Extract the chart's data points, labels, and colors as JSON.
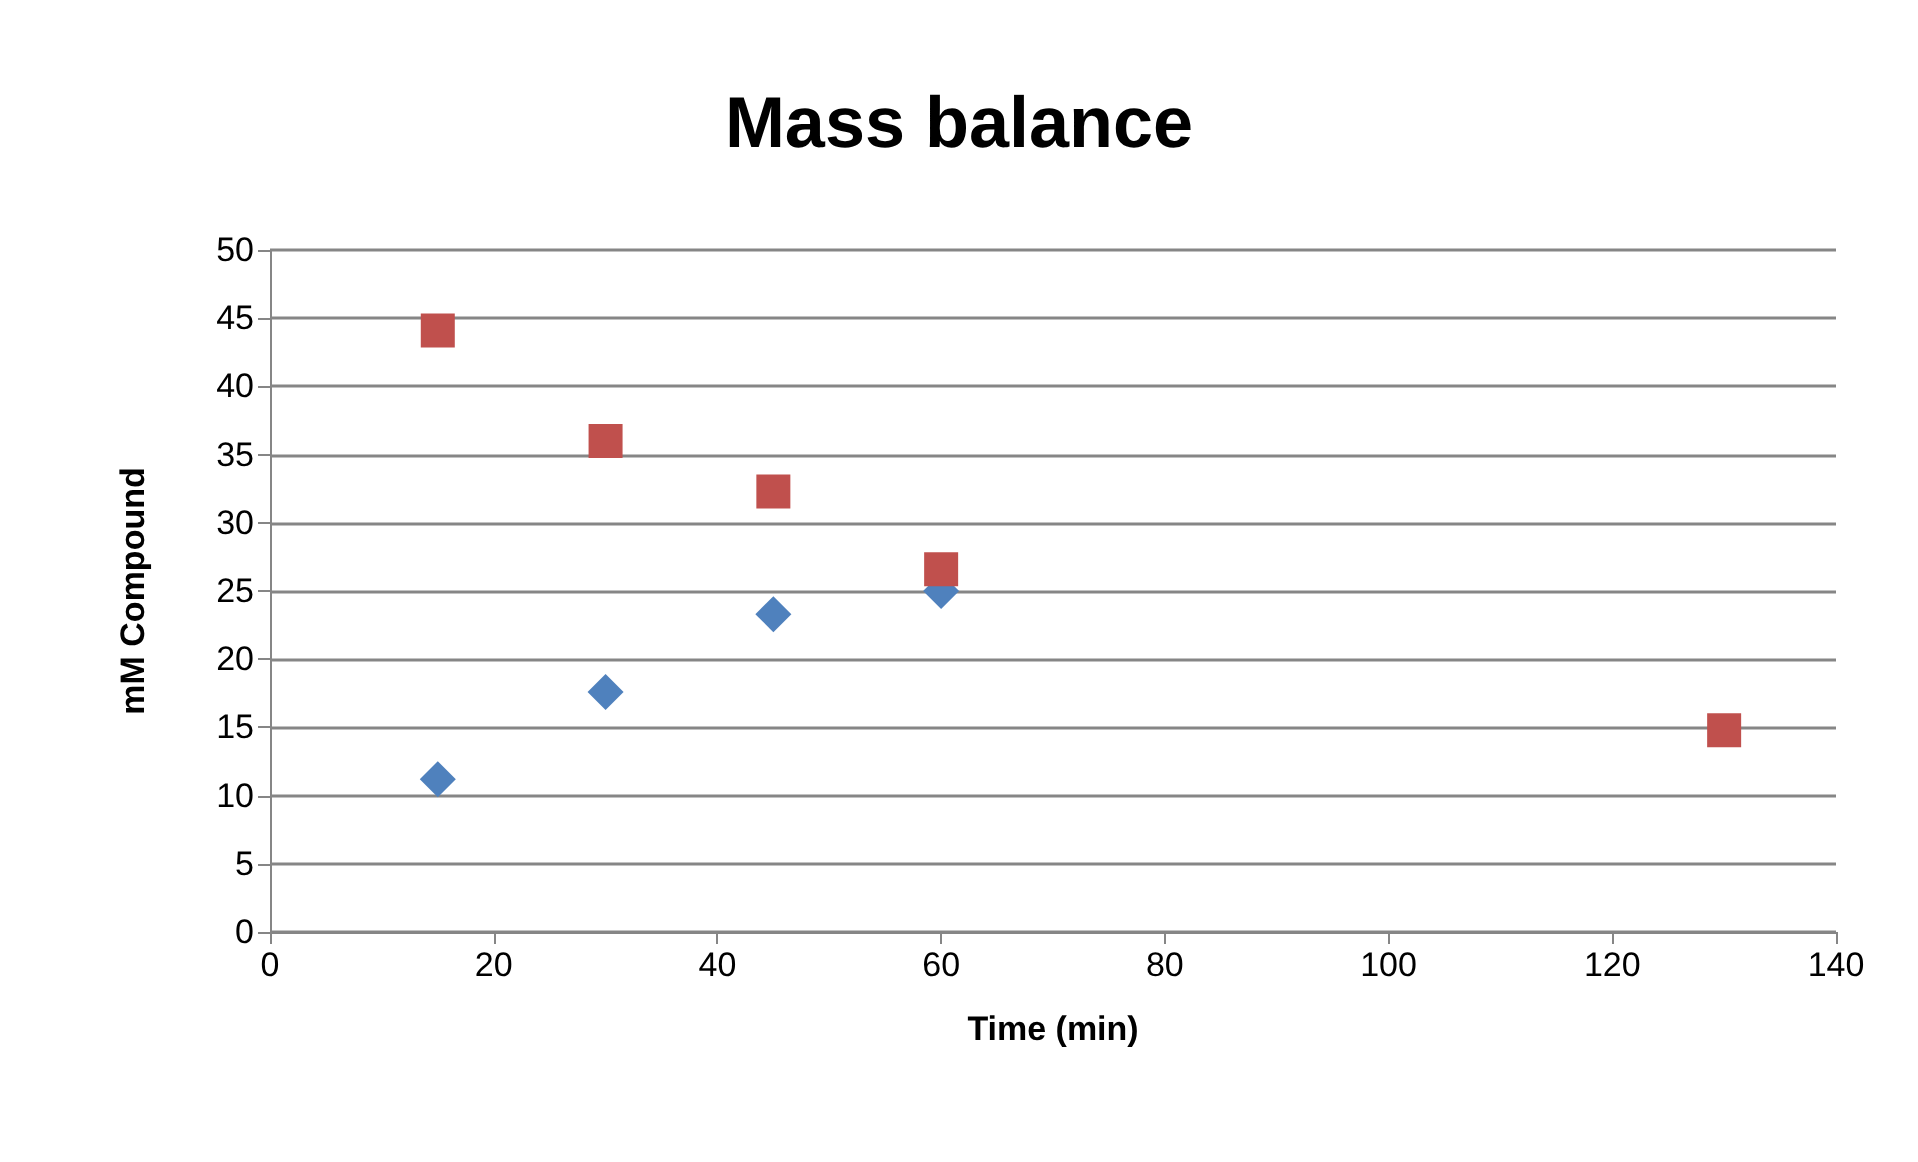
{
  "chart_data": {
    "type": "scatter",
    "title": "Mass balance",
    "xlabel": "Time (min)",
    "ylabel": "mM Compound",
    "xlim": [
      0,
      140
    ],
    "xticks": [
      0,
      20,
      40,
      60,
      80,
      100,
      120,
      140
    ],
    "ylim": [
      0,
      50
    ],
    "yticks": [
      0,
      5,
      10,
      15,
      20,
      25,
      30,
      35,
      40,
      45,
      50
    ],
    "grid": "y",
    "series": [
      {
        "color": "#4f81bd",
        "marker": "diamond",
        "x": [
          15,
          30,
          45,
          60
        ],
        "values": [
          11.2,
          17.6,
          23.3,
          25.0
        ]
      },
      {
        "color": "#c0504d",
        "marker": "square",
        "x": [
          15,
          30,
          45,
          60,
          130
        ],
        "values": [
          44.1,
          36.0,
          32.3,
          26.6,
          14.8
        ]
      }
    ]
  }
}
